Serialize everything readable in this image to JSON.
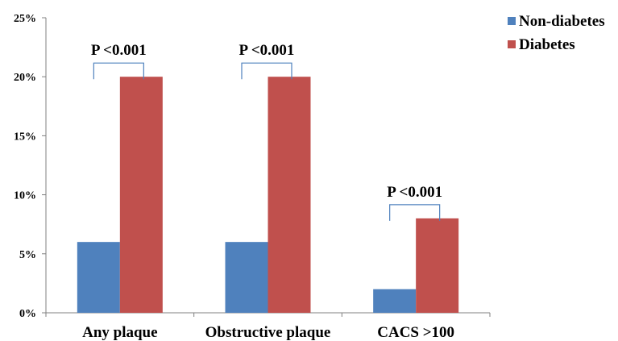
{
  "chart_data": {
    "type": "bar",
    "categories": [
      "Any plaque",
      "Obstructive plaque",
      "CACS >100"
    ],
    "series": [
      {
        "name": "Non-diabetes",
        "color": "#4f81bd",
        "values": [
          6,
          6,
          2
        ]
      },
      {
        "name": "Diabetes",
        "color": "#c0504d",
        "values": [
          20,
          20,
          8
        ]
      }
    ],
    "y_ticks": [
      "0%",
      "5%",
      "10%",
      "15%",
      "20%",
      "25%"
    ],
    "y_tick_values": [
      0,
      5,
      10,
      15,
      20,
      25
    ],
    "ylim": [
      0,
      25
    ],
    "y_unit": "%",
    "grid": false,
    "legend_position": "top-right",
    "annotations": [
      {
        "category": "Any plaque",
        "text": "P <0.001"
      },
      {
        "category": "Obstructive plaque",
        "text": "P <0.001"
      },
      {
        "category": "CACS >100",
        "text": "P <0.001"
      }
    ],
    "bracket_color": "#4f81bd"
  }
}
